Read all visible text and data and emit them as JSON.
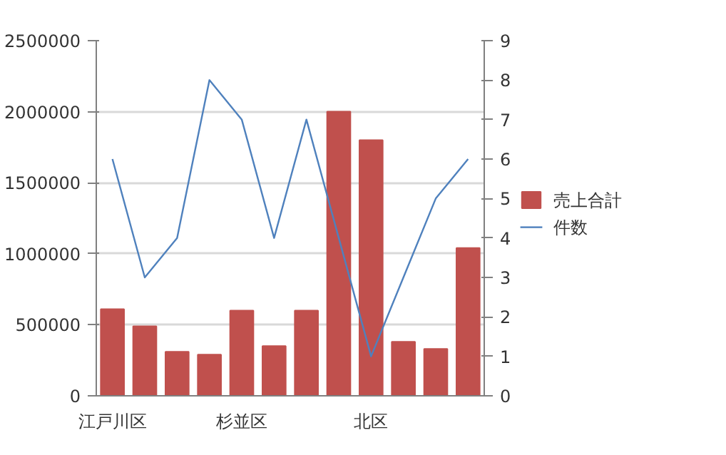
{
  "chart_data": {
    "type": "bar",
    "categories": [
      "江戸川区",
      null,
      null,
      null,
      "杉並区",
      null,
      null,
      null,
      "北区",
      null,
      null,
      null
    ],
    "series": [
      {
        "name": "売上合計",
        "color": "#c0504d",
        "values": [
          610000,
          490000,
          310000,
          290000,
          600000,
          350000,
          600000,
          2000000,
          1800000,
          380000,
          330000,
          1040000
        ]
      },
      {
        "name": "件数",
        "type": "line",
        "axis": "y2",
        "color": "#4f81bd",
        "values": [
          6,
          3,
          4,
          8,
          7,
          4,
          7,
          4,
          1,
          3,
          5,
          6
        ]
      }
    ],
    "ylim": [
      0,
      2500000
    ],
    "yticks": [
      0,
      500000,
      1000000,
      1500000,
      2000000,
      2500000
    ],
    "y2lim": [
      0,
      9
    ],
    "y2ticks": [
      0,
      1,
      2,
      3,
      4,
      5,
      6,
      7,
      8,
      9
    ],
    "grid": "y",
    "legend": "right"
  }
}
